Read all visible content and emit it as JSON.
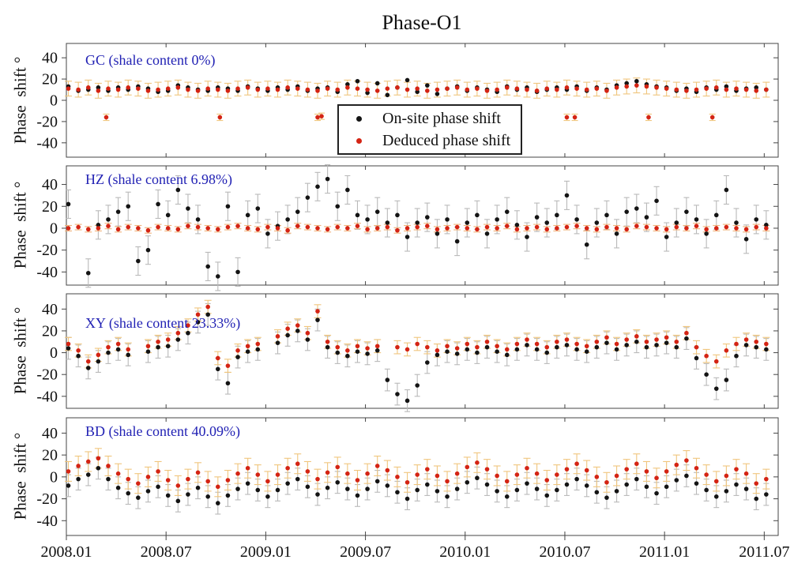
{
  "title": "Phase-O1",
  "legend": {
    "items": [
      {
        "label": "On-site phase shift",
        "color": "#141414"
      },
      {
        "label": "Deduced phase shift",
        "color": "#d42414"
      }
    ]
  },
  "colors": {
    "panel_label": "#2222b4",
    "black_series": "#141414",
    "red_series": "#d42414",
    "orange_errorbar": "#f0c57c",
    "gray_errorbar": "#b9b9b9"
  },
  "axis": {
    "ylabel": "Phase  shift °",
    "yticks": [
      40,
      20,
      0,
      -20,
      -40
    ],
    "xticks": [
      {
        "year": 2008.0,
        "label": "2008.01"
      },
      {
        "year": 2008.5,
        "label": "2008.07"
      },
      {
        "year": 2009.0,
        "label": "2009.01"
      },
      {
        "year": 2009.5,
        "label": "2009.07"
      },
      {
        "year": 2010.0,
        "label": "2010.01"
      },
      {
        "year": 2010.5,
        "label": "2010.07"
      },
      {
        "year": 2011.0,
        "label": "2011.01"
      },
      {
        "year": 2011.5,
        "label": "2011.07"
      }
    ],
    "xlim": [
      2008.0,
      2011.57
    ]
  },
  "chart_data": [
    {
      "type": "scatter",
      "panel": "GC",
      "label": "GC (shale content 0%)",
      "shale_content": "0%",
      "ylim": [
        -53.5,
        53.5
      ],
      "x0": 2008.01,
      "dx": 0.05,
      "series": [
        {
          "name": "On-site phase shift",
          "color": "#141414",
          "yerr": 0,
          "err_color": "#b9b9b9",
          "y": [
            13,
            9,
            10,
            12,
            9,
            12,
            10,
            13,
            11,
            8,
            9,
            14,
            12,
            10,
            9,
            12,
            11,
            9,
            13,
            11,
            9,
            12,
            10,
            13,
            9,
            11,
            12,
            8,
            15,
            18,
            7,
            16,
            5,
            12,
            19,
            8,
            14,
            6,
            11,
            13,
            9,
            12,
            10,
            8,
            13,
            10,
            12,
            8,
            10,
            12,
            10,
            13,
            9,
            12,
            10,
            14,
            16,
            18,
            15,
            13,
            12,
            9,
            11,
            8,
            12,
            10,
            13,
            9,
            11,
            12,
            10
          ]
        },
        {
          "name": "Deduced phase shift",
          "color": "#d42414",
          "yerr": 7,
          "err_color": "#f0c57c",
          "y": [
            11,
            10,
            12,
            9,
            11,
            10,
            12,
            11,
            9,
            10,
            11,
            12,
            10,
            9,
            11,
            10,
            9,
            11,
            12,
            10,
            11,
            10,
            12,
            11,
            10,
            9,
            11,
            10,
            12,
            11,
            10,
            9,
            11,
            12,
            10,
            11,
            9,
            10,
            11,
            12,
            10,
            11,
            9,
            10,
            12,
            11,
            10,
            9,
            11,
            10,
            12,
            11,
            10,
            11,
            9,
            12,
            13,
            14,
            13,
            12,
            11,
            10,
            9,
            10,
            11,
            12,
            10,
            11,
            10,
            9,
            10
          ],
          "outliers": {
            "x": [
              2008.2,
              2008.77,
              2009.26,
              2009.28,
              2010.51,
              2010.55,
              2010.92,
              2011.24
            ],
            "y": [
              -16,
              -16,
              -16,
              -15,
              -16,
              -16,
              -16,
              -16
            ],
            "yerr": 3
          }
        }
      ]
    },
    {
      "type": "scatter",
      "panel": "HZ",
      "label": "HZ (shale content 6.98%)",
      "shale_content": "6.98%",
      "ylim": [
        -52,
        57
      ],
      "x0": 2008.01,
      "dx": 0.05,
      "series": [
        {
          "name": "On-site phase shift",
          "color": "#141414",
          "yerr": 13,
          "err_color": "#b9b9b9",
          "y": [
            22,
            null,
            -41,
            3,
            8,
            15,
            20,
            -30,
            -20,
            22,
            12,
            35,
            18,
            8,
            -35,
            -44,
            20,
            -40,
            12,
            18,
            -5,
            2,
            8,
            15,
            28,
            38,
            45,
            20,
            35,
            12,
            8,
            15,
            5,
            12,
            -8,
            5,
            10,
            -5,
            8,
            -12,
            5,
            12,
            -5,
            8,
            15,
            3,
            -8,
            10,
            5,
            12,
            30,
            8,
            -15,
            5,
            12,
            -5,
            15,
            18,
            10,
            25,
            -8,
            5,
            15,
            8,
            -5,
            12,
            35,
            5,
            -10,
            8,
            3
          ]
        },
        {
          "name": "Deduced phase shift",
          "color": "#d42414",
          "yerr": 2.5,
          "err_color": "#f0b27a",
          "y": [
            0,
            1,
            -1,
            0,
            2,
            -1,
            1,
            0,
            -2,
            1,
            0,
            -1,
            2,
            1,
            0,
            -1,
            1,
            2,
            0,
            -1,
            1,
            0,
            -2,
            2,
            1,
            0,
            -1,
            1,
            0,
            2,
            -1,
            0,
            1,
            -2,
            0,
            1,
            2,
            -1,
            0,
            1,
            0,
            -1,
            1,
            0,
            2,
            -1,
            0,
            1,
            -1,
            0,
            1,
            2,
            0,
            -1,
            1,
            0,
            -1,
            2,
            1,
            0,
            -1,
            1,
            0,
            2,
            -1,
            0,
            1,
            0,
            -1,
            1,
            0
          ]
        }
      ]
    },
    {
      "type": "scatter",
      "panel": "XY",
      "label": "XY (shale content 23.33%)",
      "shale_content": "23.33%",
      "ylim": [
        -51,
        54
      ],
      "x0": 2008.01,
      "dx": 0.05,
      "series": [
        {
          "name": "On-site phase shift",
          "color": "#141414",
          "yerr": 10,
          "err_color": "#b9b9b9",
          "y": [
            4,
            -3,
            -14,
            -8,
            0,
            3,
            -2,
            null,
            1,
            5,
            6,
            12,
            18,
            28,
            35,
            -15,
            -28,
            -4,
            1,
            3,
            null,
            9,
            16,
            20,
            12,
            30,
            5,
            0,
            -3,
            1,
            -1,
            2,
            -25,
            -38,
            -44,
            -30,
            -9,
            -2,
            1,
            -1,
            3,
            0,
            5,
            1,
            -2,
            3,
            7,
            3,
            0,
            5,
            7,
            3,
            1,
            5,
            9,
            3,
            7,
            10,
            5,
            7,
            9,
            5,
            13,
            -5,
            -20,
            -33,
            -25,
            -3,
            7,
            5,
            3
          ]
        },
        {
          "name": "Deduced phase shift",
          "color": "#d42414",
          "yerr": 6,
          "err_color": "#f0c57c",
          "y": [
            8,
            2,
            -8,
            -2,
            5,
            8,
            3,
            null,
            6,
            10,
            12,
            18,
            25,
            35,
            42,
            -5,
            -12,
            2,
            6,
            8,
            null,
            15,
            22,
            25,
            18,
            38,
            10,
            5,
            2,
            6,
            4,
            6,
            null,
            5,
            3,
            8,
            5,
            2,
            6,
            4,
            8,
            5,
            10,
            6,
            3,
            8,
            12,
            8,
            5,
            10,
            12,
            8,
            6,
            10,
            14,
            8,
            12,
            15,
            10,
            12,
            14,
            10,
            18,
            5,
            -3,
            -8,
            2,
            8,
            12,
            10,
            8
          ]
        }
      ]
    },
    {
      "type": "scatter",
      "panel": "BD",
      "label": "BD (shale content 40.09%)",
      "shale_content": "40.09%",
      "ylim": [
        -53.5,
        54
      ],
      "x0": 2008.01,
      "dx": 0.05,
      "series": [
        {
          "name": "On-site phase shift",
          "color": "#141414",
          "yerr": 10,
          "err_color": "#b9b9b9",
          "y": [
            -8,
            -2,
            2,
            8,
            -2,
            -10,
            -15,
            -19,
            -13,
            -9,
            -17,
            -22,
            -16,
            -10,
            -18,
            -24,
            -17,
            -11,
            -6,
            -12,
            -18,
            -12,
            -6,
            -2,
            -9,
            -16,
            -10,
            -5,
            -11,
            -17,
            -11,
            -4,
            -8,
            -14,
            -20,
            -12,
            -7,
            -13,
            -18,
            -11,
            -5,
            -1,
            -7,
            -13,
            -18,
            -12,
            -6,
            -11,
            -17,
            -12,
            -7,
            -2,
            -8,
            -14,
            -19,
            -13,
            -7,
            -2,
            -9,
            -15,
            -9,
            -3,
            1,
            -6,
            -12,
            -18,
            -13,
            -7,
            -11,
            -20,
            -16
          ]
        },
        {
          "name": "Deduced phase shift",
          "color": "#d42414",
          "yerr": 9,
          "err_color": "#f0c57c",
          "y": [
            5,
            10,
            14,
            17,
            10,
            3,
            -2,
            -6,
            0,
            5,
            -3,
            -8,
            -2,
            4,
            -4,
            -9,
            -3,
            3,
            8,
            2,
            -4,
            2,
            8,
            12,
            5,
            -2,
            4,
            9,
            3,
            -3,
            3,
            10,
            6,
            0,
            -5,
            2,
            7,
            1,
            -4,
            3,
            9,
            13,
            7,
            1,
            -4,
            2,
            8,
            3,
            -3,
            2,
            7,
            12,
            6,
            0,
            -5,
            1,
            7,
            12,
            5,
            -1,
            5,
            11,
            15,
            8,
            2,
            -4,
            1,
            7,
            3,
            -6,
            -2
          ]
        }
      ]
    }
  ]
}
